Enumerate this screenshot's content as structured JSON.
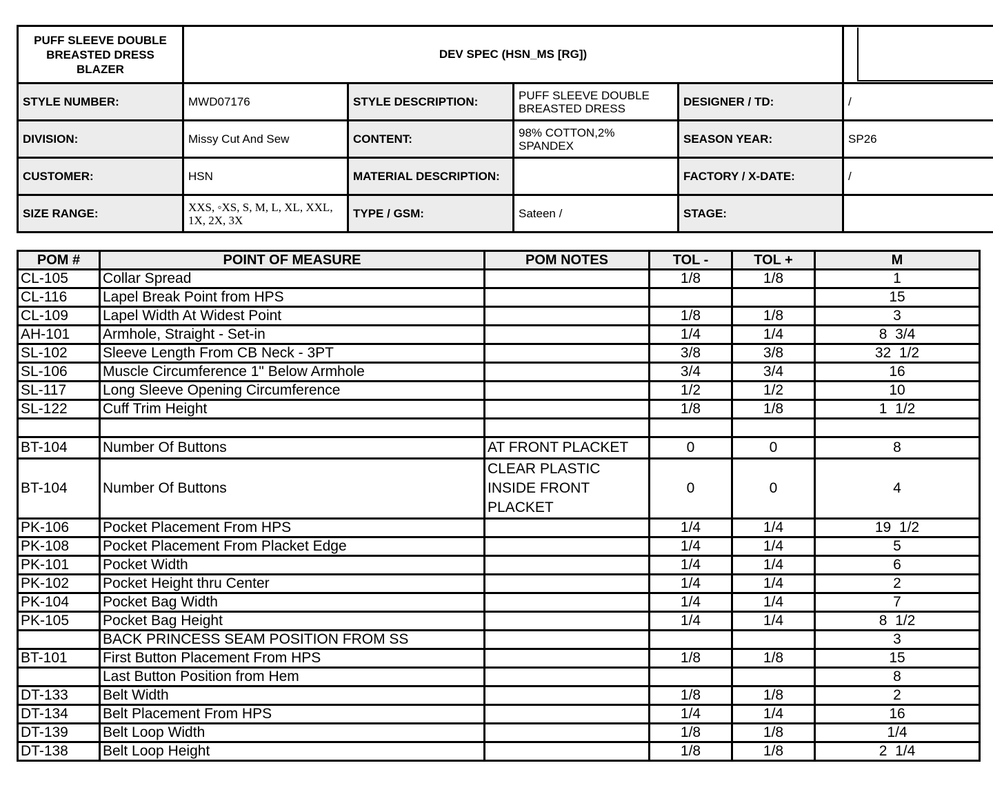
{
  "header": {
    "style_name": "PUFF SLEEVE DOUBLE BREASTED DRESS BLAZER",
    "title": "DEV SPEC (HSN_MS [RG])"
  },
  "info": [
    [
      [
        "STYLE NUMBER:",
        "MWD07176"
      ],
      [
        "STYLE DESCRIPTION:",
        "PUFF SLEEVE DOUBLE BREASTED DRESS"
      ],
      [
        "DESIGNER / TD:",
        "/"
      ]
    ],
    [
      [
        "DIVISION:",
        "Missy Cut And Sew"
      ],
      [
        "CONTENT:",
        "98% COTTON,2% SPANDEX"
      ],
      [
        "SEASON YEAR:",
        "SP26"
      ]
    ],
    [
      [
        "CUSTOMER:",
        "HSN"
      ],
      [
        "MATERIAL DESCRIPTION:",
        null
      ],
      [
        "FACTORY / X-DATE:",
        "/"
      ]
    ],
    [
      [
        "SIZE RANGE:",
        "XXS, ◦XS, S, M, L, XL, XXL, 1X, 2X, 3X"
      ],
      [
        "TYPE / GSM:",
        "Sateen /"
      ],
      [
        "STAGE:",
        null
      ]
    ]
  ],
  "table": {
    "headers": [
      "POM #",
      "POINT OF MEASURE",
      "POM NOTES",
      "TOL -",
      "TOL +",
      "M"
    ],
    "rows": [
      [
        "CL-105",
        "Collar Spread",
        null,
        "1/8",
        "1/8",
        "1"
      ],
      [
        "CL-116",
        "Lapel Break Point from HPS",
        null,
        null,
        null,
        "15"
      ],
      [
        "CL-109",
        "Lapel Width At Widest Point",
        null,
        "1/8",
        "1/8",
        "3"
      ],
      [
        "AH-101",
        "Armhole, Straight - Set-in",
        null,
        "1/4",
        "1/4",
        "8  3/4"
      ],
      [
        "SL-102",
        "Sleeve Length From CB Neck - 3PT",
        null,
        "3/8",
        "3/8",
        "32  1/2"
      ],
      [
        "SL-106",
        "Muscle Circumference 1\" Below Armhole",
        null,
        "3/4",
        "3/4",
        "16"
      ],
      [
        "SL-117",
        "Long Sleeve Opening Circumference",
        null,
        "1/2",
        "1/2",
        "10"
      ],
      [
        "SL-122",
        "Cuff Trim Height",
        null,
        "1/8",
        "1/8",
        "1  1/2"
      ],
      [
        null,
        null,
        null,
        null,
        null,
        null
      ],
      [
        "BT-104",
        "Number Of Buttons",
        "AT FRONT PLACKET",
        "0",
        "0",
        "8"
      ],
      [
        "BT-104",
        "Number Of Buttons",
        "CLEAR PLASTIC INSIDE FRONT PLACKET",
        "0",
        "0",
        "4"
      ],
      [
        "PK-106",
        "Pocket Placement From HPS",
        null,
        "1/4",
        "1/4",
        "19  1/2"
      ],
      [
        "PK-108",
        "Pocket Placement From Placket Edge",
        null,
        "1/4",
        "1/4",
        "5"
      ],
      [
        "PK-101",
        "Pocket Width",
        null,
        "1/4",
        "1/4",
        "6"
      ],
      [
        "PK-102",
        "Pocket Height thru Center",
        null,
        "1/4",
        "1/4",
        "2"
      ],
      [
        "PK-104",
        "Pocket Bag Width",
        null,
        "1/4",
        "1/4",
        "7"
      ],
      [
        "PK-105",
        "Pocket Bag Height",
        null,
        "1/4",
        "1/4",
        "8  1/2"
      ],
      [
        null,
        "BACK PRINCESS SEAM POSITION FROM SS",
        null,
        null,
        null,
        "3"
      ],
      [
        "BT-101",
        "First Button Placement From HPS",
        null,
        "1/8",
        "1/8",
        "15"
      ],
      [
        null,
        "Last Button Position from Hem",
        null,
        null,
        null,
        "8"
      ],
      [
        "DT-133",
        "Belt Width",
        null,
        "1/8",
        "1/8",
        "2"
      ],
      [
        "DT-134",
        "Belt Placement From HPS",
        null,
        "1/4",
        "1/4",
        "16"
      ],
      [
        "DT-139",
        "Belt Loop Width",
        null,
        "1/8",
        "1/8",
        "1/4"
      ],
      [
        "DT-138",
        "Belt Loop Height",
        null,
        "1/8",
        "1/8",
        "2  1/4"
      ]
    ]
  }
}
